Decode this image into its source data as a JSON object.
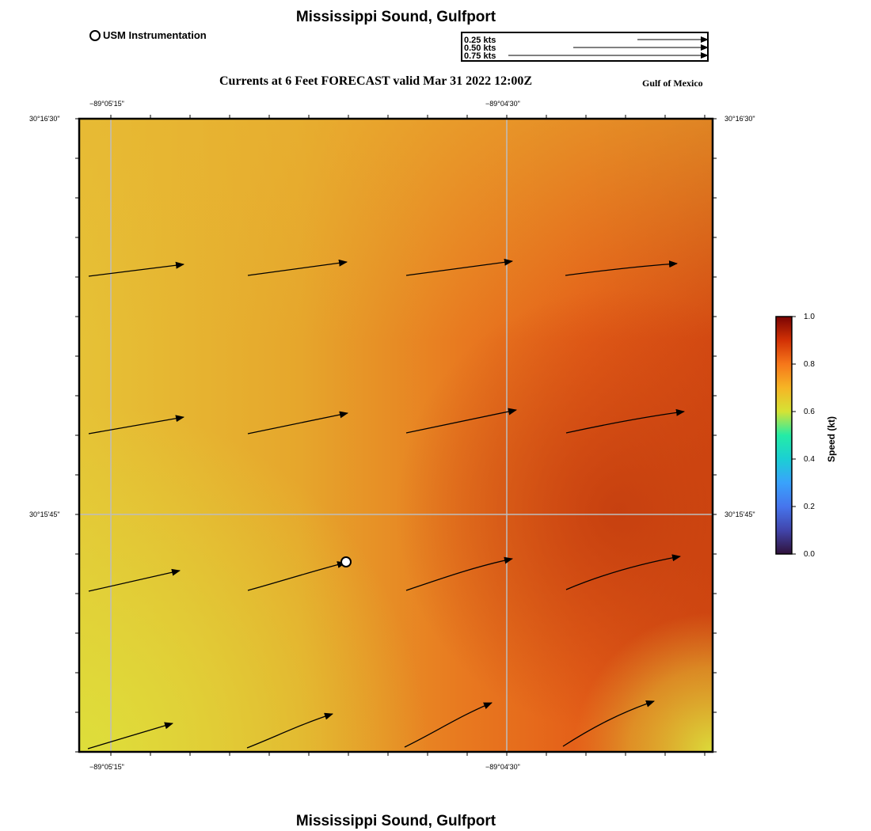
{
  "title": "Mississippi Sound, Gulfport",
  "bottom_title": "Mississippi Sound, Gulfport",
  "forecast_title": "Currents at 6 Feet FORECAST valid Mar 31 2022 12:00Z",
  "region_label": "Gulf of Mexico",
  "station_legend": "USM Instrumentation",
  "vector_scale": [
    "0.25 kts",
    "0.50 kts",
    "0.75 kts"
  ],
  "axes": {
    "lon_ticks": [
      "−89°05'15\"",
      "−89°04'30\""
    ],
    "lat_ticks": [
      "30°16'30\"",
      "30°15'45\""
    ]
  },
  "colorbar": {
    "label": "Speed (kt)",
    "ticks": [
      "0.0",
      "0.2",
      "0.4",
      "0.6",
      "0.8",
      "1.0"
    ],
    "range": [
      0,
      1
    ]
  },
  "colors": {
    "low": "#dcdc3a",
    "mid": "#e89a28",
    "high": "#e05818",
    "max": "#c83e10",
    "vector": "#000000"
  }
}
